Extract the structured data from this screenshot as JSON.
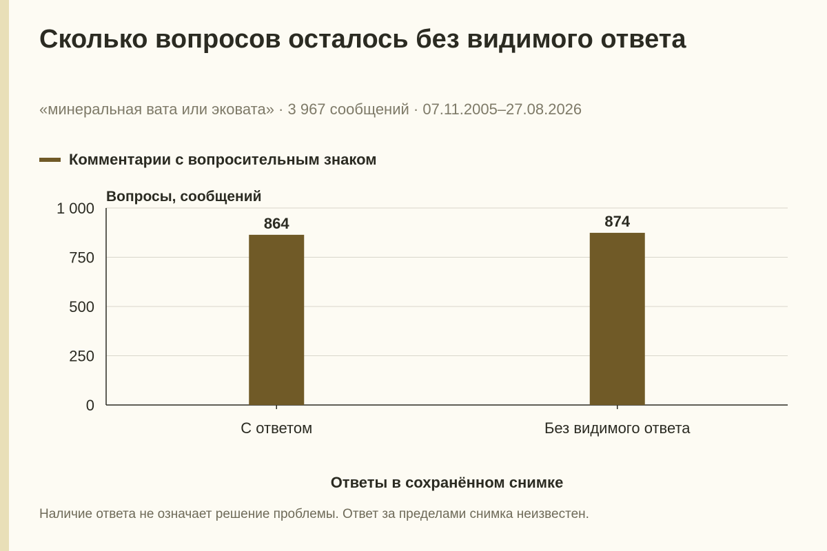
{
  "page": {
    "title": "Сколько вопросов осталось без видимого ответа",
    "subtitle": "«минеральная вата или эковата» · 3 967 сообщений · 07.11.2005–27.08.2026",
    "caption": "Наличие ответа не означает решение проблемы. Ответ за пределами снимка неизвестен."
  },
  "colors": {
    "bar": "#705a27",
    "grid": "#d9d6cb",
    "axis": "#2b2b22",
    "background": "#fdfbf3",
    "accent_rule": "#e9dfb8"
  },
  "chart_data": {
    "type": "bar",
    "title": "Сколько вопросов осталось без видимого ответа",
    "ylabel": "Вопросы, сообщений",
    "xlabel": "Ответы в сохранённом снимке",
    "categories": [
      "С ответом",
      "Без видимого ответа"
    ],
    "series": [
      {
        "name": "Комментарии с вопросительным знаком",
        "values": [
          864,
          874
        ]
      }
    ],
    "ylim": [
      0,
      1000
    ],
    "yticks": [
      0,
      250,
      500,
      750,
      1000
    ],
    "ytick_labels": [
      "0",
      "250",
      "500",
      "750",
      "1 000"
    ],
    "data_labels": [
      "864",
      "874"
    ],
    "grid": true,
    "legend_position": "top-left"
  }
}
